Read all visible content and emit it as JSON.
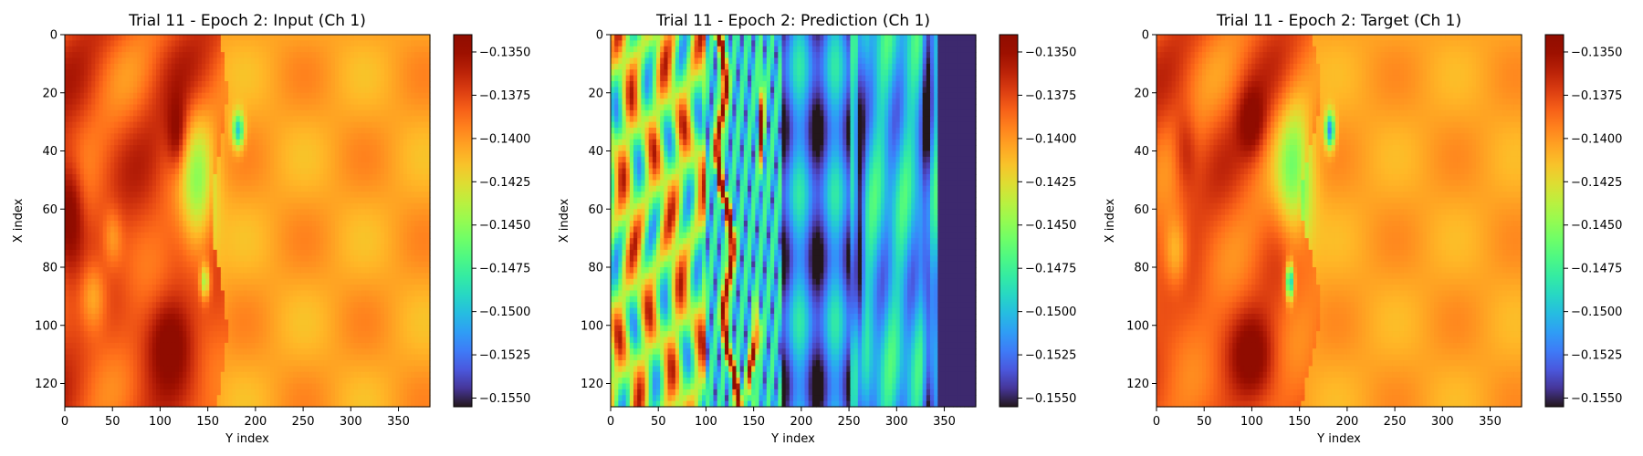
{
  "chart_data": [
    {
      "type": "heatmap",
      "title": "Trial 11 - Epoch 2: Input (Ch 1)",
      "xlabel": "Y index",
      "ylabel": "X index",
      "xlim": [
        0,
        383
      ],
      "ylim": [
        128,
        0
      ],
      "x_ticks": [
        "0",
        "50",
        "100",
        "150",
        "200",
        "250",
        "300",
        "350"
      ],
      "y_ticks": [
        "0",
        "20",
        "40",
        "60",
        "80",
        "100",
        "120"
      ],
      "colorbar": {
        "colormap": "turbo",
        "vmin": -0.1555,
        "vmax": -0.134,
        "ticks": [
          "−0.1350",
          "−0.1375",
          "−0.1400",
          "−0.1425",
          "−0.1450",
          "−0.1475",
          "−0.1500",
          "−0.1525",
          "−0.1550"
        ]
      },
      "field": "input"
    },
    {
      "type": "heatmap",
      "title": "Trial 11 - Epoch 2: Prediction (Ch 1)",
      "xlabel": "Y index",
      "ylabel": "X index",
      "xlim": [
        0,
        383
      ],
      "ylim": [
        128,
        0
      ],
      "x_ticks": [
        "0",
        "50",
        "100",
        "150",
        "200",
        "250",
        "300",
        "350"
      ],
      "y_ticks": [
        "0",
        "20",
        "40",
        "60",
        "80",
        "100",
        "120"
      ],
      "colorbar": {
        "colormap": "turbo",
        "vmin": -0.1555,
        "vmax": -0.134,
        "ticks": [
          "−0.1350",
          "−0.1375",
          "−0.1400",
          "−0.1425",
          "−0.1450",
          "−0.1475",
          "−0.1500",
          "−0.1525",
          "−0.1550"
        ]
      },
      "field": "prediction"
    },
    {
      "type": "heatmap",
      "title": "Trial 11 - Epoch 2: Target (Ch 1)",
      "xlabel": "Y index",
      "ylabel": "X index",
      "xlim": [
        0,
        383
      ],
      "ylim": [
        128,
        0
      ],
      "x_ticks": [
        "0",
        "50",
        "100",
        "150",
        "200",
        "250",
        "300",
        "350"
      ],
      "y_ticks": [
        "0",
        "20",
        "40",
        "60",
        "80",
        "100",
        "120"
      ],
      "colorbar": {
        "colormap": "turbo",
        "vmin": -0.1555,
        "vmax": -0.134,
        "ticks": [
          "−0.1350",
          "−0.1375",
          "−0.1400",
          "−0.1425",
          "−0.1450",
          "−0.1475",
          "−0.1500",
          "−0.1525",
          "−0.1550"
        ]
      },
      "field": "target"
    }
  ]
}
